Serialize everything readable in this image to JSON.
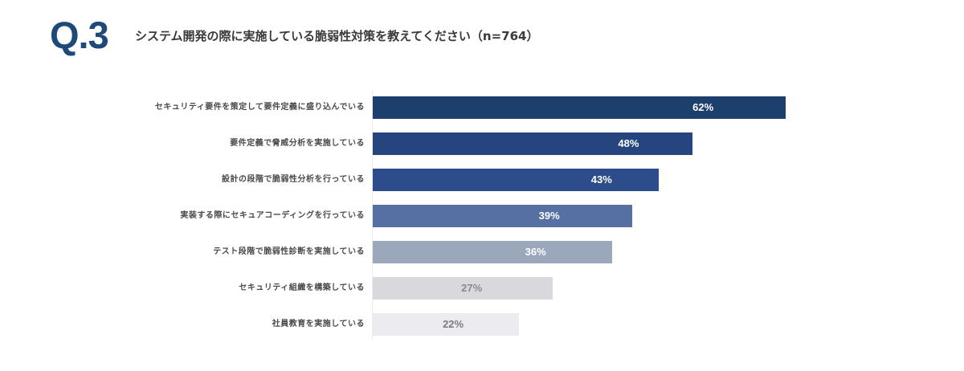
{
  "header": {
    "question_number": "Q.3",
    "title": "システム開発の際に実施している脆弱性対策を教えてください（n=764）"
  },
  "chart_data": {
    "type": "bar",
    "orientation": "horizontal",
    "title": "システム開発の際に実施している脆弱性対策を教えてください（n=764）",
    "sample_size": 764,
    "xlabel": "",
    "ylabel": "",
    "grid": false,
    "legend": null,
    "categories": [
      "セキュリティ要件を策定して要件定義に盛り込んでいる",
      "要件定義で脅威分析を実施している",
      "設計の段階で脆弱性分析を行っている",
      "実装する際にセキュアコーディングを行っている",
      "テスト段階で脆弱性診断を実施している",
      "セキュリティ組織を構築している",
      "社員教育を実施している"
    ],
    "values": [
      62,
      48,
      43,
      39,
      36,
      27,
      22
    ],
    "value_labels": [
      "62%",
      "48%",
      "43%",
      "39%",
      "36%",
      "27%",
      "22%"
    ],
    "unit": "%"
  },
  "bars": [
    {
      "label": "セキュリティ要件を策定して要件定義に盛り込んでいる",
      "value": 62,
      "value_label": "62%",
      "color": "#1d3f6e",
      "text_color": "#ffffff"
    },
    {
      "label": "要件定義で脅威分析を実施している",
      "value": 48,
      "value_label": "48%",
      "color": "#26457f",
      "text_color": "#ffffff"
    },
    {
      "label": "設計の段階で脆弱性分析を行っている",
      "value": 43,
      "value_label": "43%",
      "color": "#2c4c8c",
      "text_color": "#ffffff"
    },
    {
      "label": "実装する際にセキュアコーディングを行っている",
      "value": 39,
      "value_label": "39%",
      "color": "#5670a4",
      "text_color": "#ffffff"
    },
    {
      "label": "テスト段階で脆弱性診断を実施している",
      "value": 36,
      "value_label": "36%",
      "color": "#9ba8bc",
      "text_color": "#ffffff"
    },
    {
      "label": "セキュリティ組織を構築している",
      "value": 27,
      "value_label": "27%",
      "color": "#d9d8dd",
      "text_color": "#8a8a8e"
    },
    {
      "label": "社員教育を実施している",
      "value": 22,
      "value_label": "22%",
      "color": "#ececf0",
      "text_color": "#7a7a80"
    }
  ]
}
